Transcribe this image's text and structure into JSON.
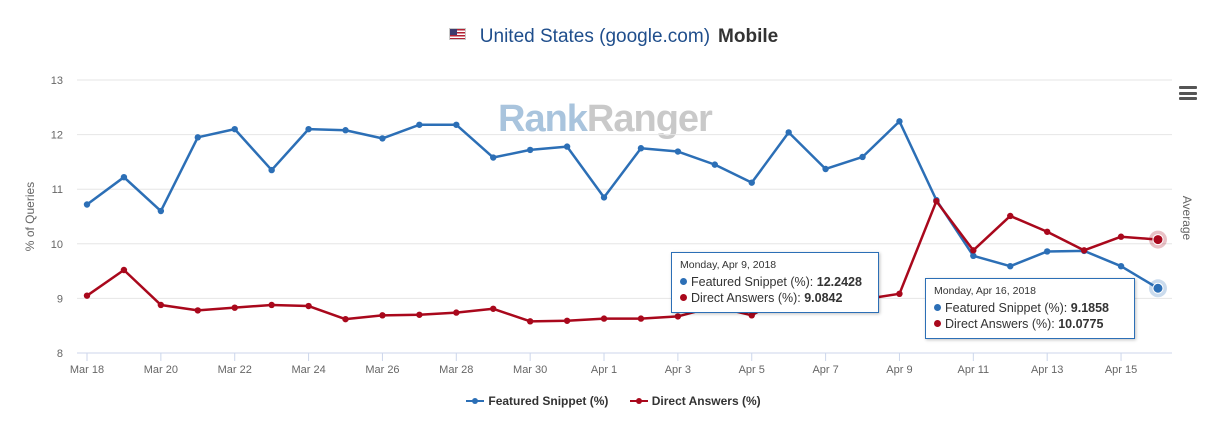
{
  "header": {
    "country": "United States (google.com)",
    "device": "Mobile"
  },
  "icons": {
    "flag": "us-flag-icon",
    "menu": "hamburger-menu-icon"
  },
  "watermark": {
    "part1": "Rank",
    "part2": "Ranger"
  },
  "chart_data": {
    "type": "line",
    "title": "United States (google.com) Mobile",
    "ylabel": "% of Queries",
    "ylabel_right": "Average",
    "ylim": [
      8,
      13
    ],
    "yticks": [
      8,
      9,
      10,
      11,
      12,
      13
    ],
    "x": [
      "Mar 18",
      "Mar 19",
      "Mar 20",
      "Mar 21",
      "Mar 22",
      "Mar 23",
      "Mar 24",
      "Mar 25",
      "Mar 26",
      "Mar 27",
      "Mar 28",
      "Mar 29",
      "Mar 30",
      "Mar 31",
      "Apr 1",
      "Apr 2",
      "Apr 3",
      "Apr 4",
      "Apr 5",
      "Apr 6",
      "Apr 7",
      "Apr 8",
      "Apr 9",
      "Apr 10",
      "Apr 11",
      "Apr 12",
      "Apr 13",
      "Apr 14",
      "Apr 15",
      "Apr 16"
    ],
    "xtick_labels": [
      "Mar 18",
      "Mar 20",
      "Mar 22",
      "Mar 24",
      "Mar 26",
      "Mar 28",
      "Mar 30",
      "Apr 1",
      "Apr 3",
      "Apr 5",
      "Apr 7",
      "Apr 9",
      "Apr 11",
      "Apr 13",
      "Apr 15"
    ],
    "grid": true,
    "legend_position": "bottom-center",
    "series": [
      {
        "name": "Featured Snippet (%)",
        "color": "#2c6fb6",
        "values": [
          10.72,
          11.22,
          10.6,
          11.95,
          12.1,
          11.35,
          12.1,
          12.08,
          11.93,
          12.18,
          12.18,
          11.58,
          11.72,
          11.78,
          10.85,
          11.75,
          11.69,
          11.45,
          11.12,
          12.04,
          11.37,
          11.59,
          12.2428,
          10.8,
          9.78,
          9.59,
          9.86,
          9.87,
          9.59,
          9.1858
        ]
      },
      {
        "name": "Direct Answers (%)",
        "color": "#a9081c",
        "values": [
          9.05,
          9.52,
          8.88,
          8.78,
          8.83,
          8.88,
          8.86,
          8.62,
          8.69,
          8.7,
          8.74,
          8.81,
          8.58,
          8.59,
          8.63,
          8.63,
          8.67,
          8.85,
          8.69,
          9.07,
          9.18,
          8.98,
          9.0842,
          10.78,
          9.88,
          10.51,
          10.22,
          9.88,
          10.13,
          10.0775
        ]
      }
    ],
    "tooltips": [
      {
        "date": "Monday, Apr 9, 2018",
        "rows": [
          {
            "label": "Featured Snippet (%): ",
            "value": "12.2428"
          },
          {
            "label": "Direct Answers (%): ",
            "value": "9.0842"
          }
        ]
      },
      {
        "date": "Monday, Apr 16, 2018",
        "rows": [
          {
            "label": "Featured Snippet (%): ",
            "value": "9.1858"
          },
          {
            "label": "Direct Answers (%): ",
            "value": "10.0775"
          }
        ]
      }
    ]
  }
}
